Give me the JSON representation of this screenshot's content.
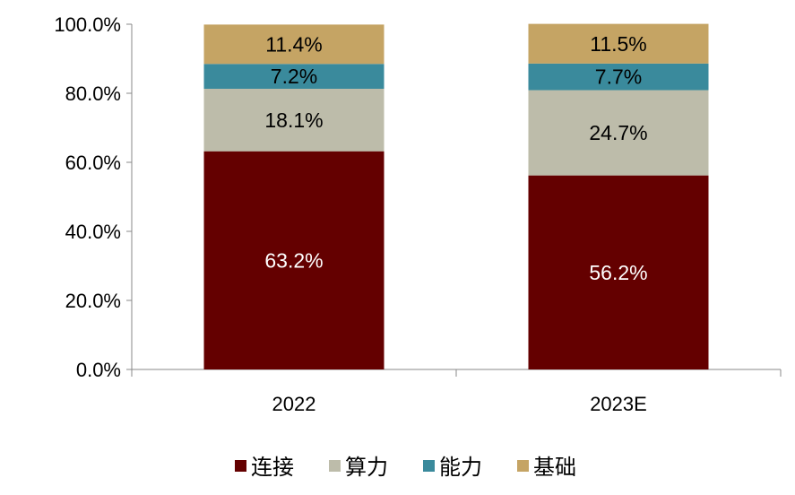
{
  "chart_data": {
    "type": "bar",
    "stacked": true,
    "categories": [
      "2022",
      "2023E"
    ],
    "series": [
      {
        "name": "连接",
        "values": [
          63.2,
          56.2
        ],
        "color": "#640000",
        "label_color": "#ffffff"
      },
      {
        "name": "算力",
        "values": [
          18.1,
          24.7
        ],
        "color": "#bdbcaa",
        "label_color": "#000000"
      },
      {
        "name": "能力",
        "values": [
          7.2,
          7.7
        ],
        "color": "#3a8a9c",
        "label_color": "#000000"
      },
      {
        "name": "基础",
        "values": [
          11.4,
          11.5
        ],
        "color": "#c5a464",
        "label_color": "#000000"
      }
    ],
    "data_labels": [
      [
        "63.2%",
        "56.2%"
      ],
      [
        "18.1%",
        "24.7%"
      ],
      [
        "7.2%",
        "7.7%"
      ],
      [
        "11.4%",
        "11.5%"
      ]
    ],
    "ylim": [
      0,
      100
    ],
    "yticks": [
      "0.0%",
      "20.0%",
      "40.0%",
      "60.0%",
      "80.0%",
      "100.0%"
    ],
    "grid": false,
    "legend_position": "bottom"
  }
}
